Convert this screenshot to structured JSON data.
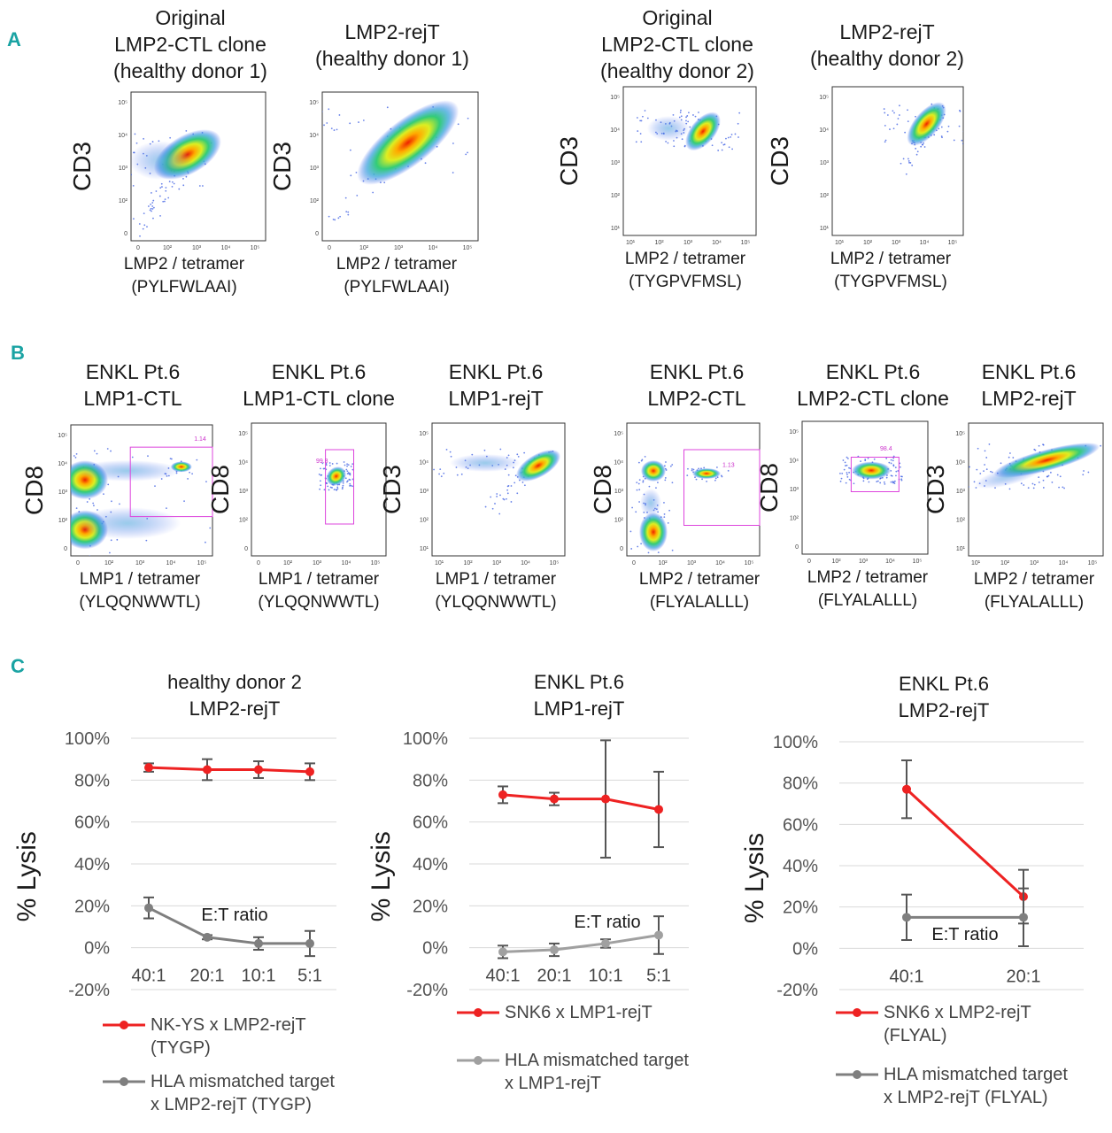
{
  "panels": {
    "A": "A",
    "B": "B",
    "C": "C"
  },
  "flow_plots": [
    {
      "id": "a1",
      "title": [
        "Original",
        "LMP2-CTL clone",
        "(healthy donor 1)"
      ],
      "ylabel": "CD3",
      "xlabel": [
        "LMP2 / tetramer",
        "(PYLFWLAAI)"
      ],
      "yticks": [
        "10⁵",
        "10⁴",
        "10³",
        "10²",
        "0"
      ],
      "xticks": [
        "0",
        "10²",
        "10³",
        "10⁴",
        "10⁵"
      ],
      "gates": []
    },
    {
      "id": "a2",
      "title": [
        "LMP2-rejT",
        "(healthy donor 1)"
      ],
      "ylabel": "CD3",
      "xlabel": [
        "LMP2 / tetramer",
        "(PYLFWLAAI)"
      ],
      "yticks": [
        "10⁵",
        "10⁴",
        "10³",
        "10²",
        "0"
      ],
      "xticks": [
        "0",
        "10²",
        "10³",
        "10⁴",
        "10⁵"
      ],
      "gates": []
    },
    {
      "id": "a3",
      "title": [
        "Original",
        "LMP2-CTL clone",
        "(healthy donor 2)"
      ],
      "ylabel": "CD3",
      "xlabel": [
        "LMP2 / tetramer",
        "(TYGPVFMSL)"
      ],
      "yticks": [
        "10⁵",
        "10⁴",
        "10³",
        "10²",
        "10¹"
      ],
      "xticks": [
        "10¹",
        "10²",
        "10³",
        "10⁴",
        "10⁵"
      ],
      "gates": []
    },
    {
      "id": "a4",
      "title": [
        "LMP2-rejT",
        "(healthy donor 2)"
      ],
      "ylabel": "CD3",
      "xlabel": [
        "LMP2 / tetramer",
        "(TYGPVFMSL)"
      ],
      "yticks": [
        "10⁵",
        "10⁴",
        "10³",
        "10²",
        "10¹"
      ],
      "xticks": [
        "10¹",
        "10²",
        "10³",
        "10⁴",
        "10⁵"
      ],
      "gates": []
    },
    {
      "id": "b1",
      "title": [
        "ENKL Pt.6",
        "LMP1-CTL"
      ],
      "ylabel": "CD8",
      "xlabel": [
        "LMP1 / tetramer",
        "(YLQQNWWTL)"
      ],
      "yticks": [
        "10⁵",
        "10⁴",
        "10³",
        "10²",
        "0"
      ],
      "xticks": [
        "0",
        "10²",
        "10³",
        "10⁴",
        "10⁵"
      ],
      "gates": [
        "1.14"
      ]
    },
    {
      "id": "b2",
      "title": [
        "ENKL Pt.6",
        "LMP1-CTL clone"
      ],
      "ylabel": "CD8",
      "xlabel": [
        "LMP1 / tetramer",
        "(YLQQNWWTL)"
      ],
      "yticks": [
        "10⁵",
        "10⁴",
        "10³",
        "10²",
        "0"
      ],
      "xticks": [
        "0",
        "10²",
        "10³",
        "10⁴",
        "10⁵"
      ],
      "gates": [
        "99.8"
      ]
    },
    {
      "id": "b3",
      "title": [
        "ENKL Pt.6",
        "LMP1-rejT"
      ],
      "ylabel": "CD3",
      "xlabel": [
        "LMP1 / tetramer",
        "(YLQQNWWTL)"
      ],
      "yticks": [
        "10⁵",
        "10⁴",
        "10³",
        "10²",
        "10¹"
      ],
      "xticks": [
        "10¹",
        "10²",
        "10³",
        "10⁴",
        "10⁵"
      ],
      "gates": []
    },
    {
      "id": "b4",
      "title": [
        "ENKL Pt.6",
        "LMP2-CTL"
      ],
      "ylabel": "CD8",
      "xlabel": [
        "LMP2 / tetramer",
        "(FLYALALLL)"
      ],
      "yticks": [
        "10⁵",
        "10⁴",
        "10³",
        "10²",
        "0"
      ],
      "xticks": [
        "0",
        "10²",
        "10³",
        "10⁴",
        "10⁵"
      ],
      "gates": [
        "1.13"
      ]
    },
    {
      "id": "b5",
      "title": [
        "ENKL Pt.6",
        "LMP2-CTL clone"
      ],
      "ylabel": "CD8",
      "xlabel": [
        "LMP2 / tetramer",
        "(FLYALALLL)"
      ],
      "yticks": [
        "10⁵",
        "10⁴",
        "10³",
        "10²",
        "0"
      ],
      "xticks": [
        "0",
        "10²",
        "10³",
        "10⁴",
        "10⁵"
      ],
      "gates": [
        "98.4"
      ]
    },
    {
      "id": "b6",
      "title": [
        "ENKL Pt.6",
        "LMP2-rejT"
      ],
      "ylabel": "CD3",
      "xlabel": [
        "LMP2 / tetramer",
        "(FLYALALLL)"
      ],
      "yticks": [
        "10⁵",
        "10⁴",
        "10³",
        "10²",
        "10¹"
      ],
      "xticks": [
        "10¹",
        "10²",
        "10³",
        "10⁴",
        "10⁵"
      ],
      "gates": []
    }
  ],
  "colors": {
    "red": "#ee2222",
    "gray": "#7f7f7f",
    "gray_light": "#a0a0a0",
    "grid": "#d9d9d9",
    "gate": "#dd44dd",
    "panel_label": "#1aa3a3"
  },
  "chart_data": [
    {
      "type": "line",
      "title": [
        "healthy donor 2",
        "LMP2-rejT"
      ],
      "ylabel": "% Lysis",
      "xlabel": "E:T ratio",
      "categories": [
        "40:1",
        "20:1",
        "10:1",
        "5:1"
      ],
      "ylim": [
        -20,
        100
      ],
      "yticks": [
        "100%",
        "80%",
        "60%",
        "40%",
        "20%",
        "0%",
        "-20%"
      ],
      "series": [
        {
          "name": "NK-YS x LMP2-rejT (TYGP)",
          "legend": [
            "NK-YS x LMP2-rejT",
            "(TYGP)"
          ],
          "color": "#ee2222",
          "values": [
            86,
            85,
            85,
            84
          ],
          "errors": [
            2,
            5,
            4,
            4
          ]
        },
        {
          "name": "HLA mismatched target x LMP2-rejT (TYGP)",
          "legend": [
            "HLA mismatched target",
            "x LMP2-rejT (TYGP)"
          ],
          "color": "#7f7f7f",
          "values": [
            19,
            5,
            2,
            2
          ],
          "errors": [
            5,
            1,
            3,
            6
          ]
        }
      ]
    },
    {
      "type": "line",
      "title": [
        "ENKL Pt.6",
        "LMP1-rejT"
      ],
      "ylabel": "% Lysis",
      "xlabel": "E:T ratio",
      "categories": [
        "40:1",
        "20:1",
        "10:1",
        "5:1"
      ],
      "ylim": [
        -20,
        100
      ],
      "yticks": [
        "100%",
        "80%",
        "60%",
        "40%",
        "20%",
        "0%",
        "-20%"
      ],
      "series": [
        {
          "name": "SNK6 x LMP1-rejT",
          "legend": [
            "SNK6 x LMP1-rejT"
          ],
          "color": "#ee2222",
          "values": [
            73,
            71,
            71,
            66
          ],
          "errors": [
            4,
            3,
            28,
            18
          ]
        },
        {
          "name": "HLA mismatched target x LMP1-rejT",
          "legend": [
            "HLA mismatched target",
            "x LMP1-rejT"
          ],
          "color": "#a0a0a0",
          "values": [
            -2,
            -1,
            2,
            6
          ],
          "errors": [
            3,
            3,
            2,
            9
          ]
        }
      ]
    },
    {
      "type": "line",
      "title": [
        "ENKL Pt.6",
        "LMP2-rejT"
      ],
      "ylabel": "% Lysis",
      "xlabel": "E:T ratio",
      "categories": [
        "40:1",
        "20:1"
      ],
      "ylim": [
        -20,
        100
      ],
      "yticks": [
        "100%",
        "80%",
        "60%",
        "40%",
        "20%",
        "0%",
        "-20%"
      ],
      "series": [
        {
          "name": "SNK6 x LMP2-rejT (FLYAL)",
          "legend": [
            "SNK6 x LMP2-rejT",
            "(FLYAL)"
          ],
          "color": "#ee2222",
          "values": [
            77,
            25
          ],
          "errors": [
            14,
            13
          ]
        },
        {
          "name": "HLA mismatched target x LMP2-rejT (FLYAL)",
          "legend": [
            "HLA mismatched target",
            "x LMP2-rejT (FLYAL)"
          ],
          "color": "#7f7f7f",
          "values": [
            15,
            15
          ],
          "errors": [
            11,
            14
          ]
        }
      ]
    }
  ]
}
